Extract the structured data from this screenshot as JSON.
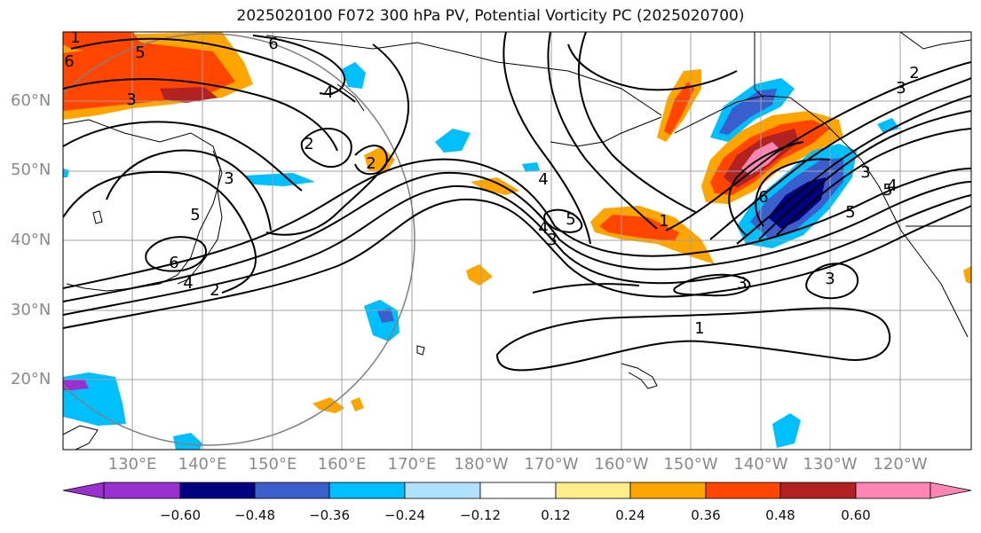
{
  "title": "2025020100 F072 300 hPa PV, Potential Vorticity PC (2025020700)",
  "lat_labels": [
    "60°N",
    "50°N",
    "40°N",
    "30°N",
    "20°N"
  ],
  "lon_labels": [
    "130°E",
    "140°E",
    "150°E",
    "160°E",
    "170°E",
    "180°W",
    "170°W",
    "160°W",
    "150°W",
    "140°W",
    "130°W",
    "120°W"
  ],
  "colorbar": {
    "tick_labels": [
      "−0.60",
      "−0.48",
      "−0.36",
      "−0.24",
      "−0.12",
      "0.12",
      "0.24",
      "0.36",
      "0.48",
      "0.60"
    ],
    "colors": [
      "#9b30d0",
      "#000080",
      "#3a5fcd",
      "#00bfff",
      "#b0e2ff",
      "#ffffff",
      "#ffec8b",
      "#ffa500",
      "#ff4500",
      "#b22222",
      "#ff85b4"
    ]
  },
  "contour_labels": [
    "6",
    "5",
    "3",
    "1",
    "6",
    "4",
    "2",
    "3",
    "2",
    "5",
    "6",
    "4",
    "2",
    "4",
    "5",
    "3",
    "4",
    "3",
    "5",
    "6",
    "5",
    "4",
    "3",
    "1",
    "3",
    "3",
    "2",
    "1"
  ],
  "colors": {
    "purple": "#9b30d0",
    "navy": "#000080",
    "royal_blue": "#3a5fcd",
    "sky_blue": "#00bfff",
    "light_blue": "#b0e2ff",
    "yellow": "#ffec8b",
    "orange": "#ffa500",
    "orange_red": "#ff4500",
    "firebrick": "#b22222",
    "pink": "#ff85b4",
    "grid": "#a0a0a0",
    "contour": "#000000"
  }
}
